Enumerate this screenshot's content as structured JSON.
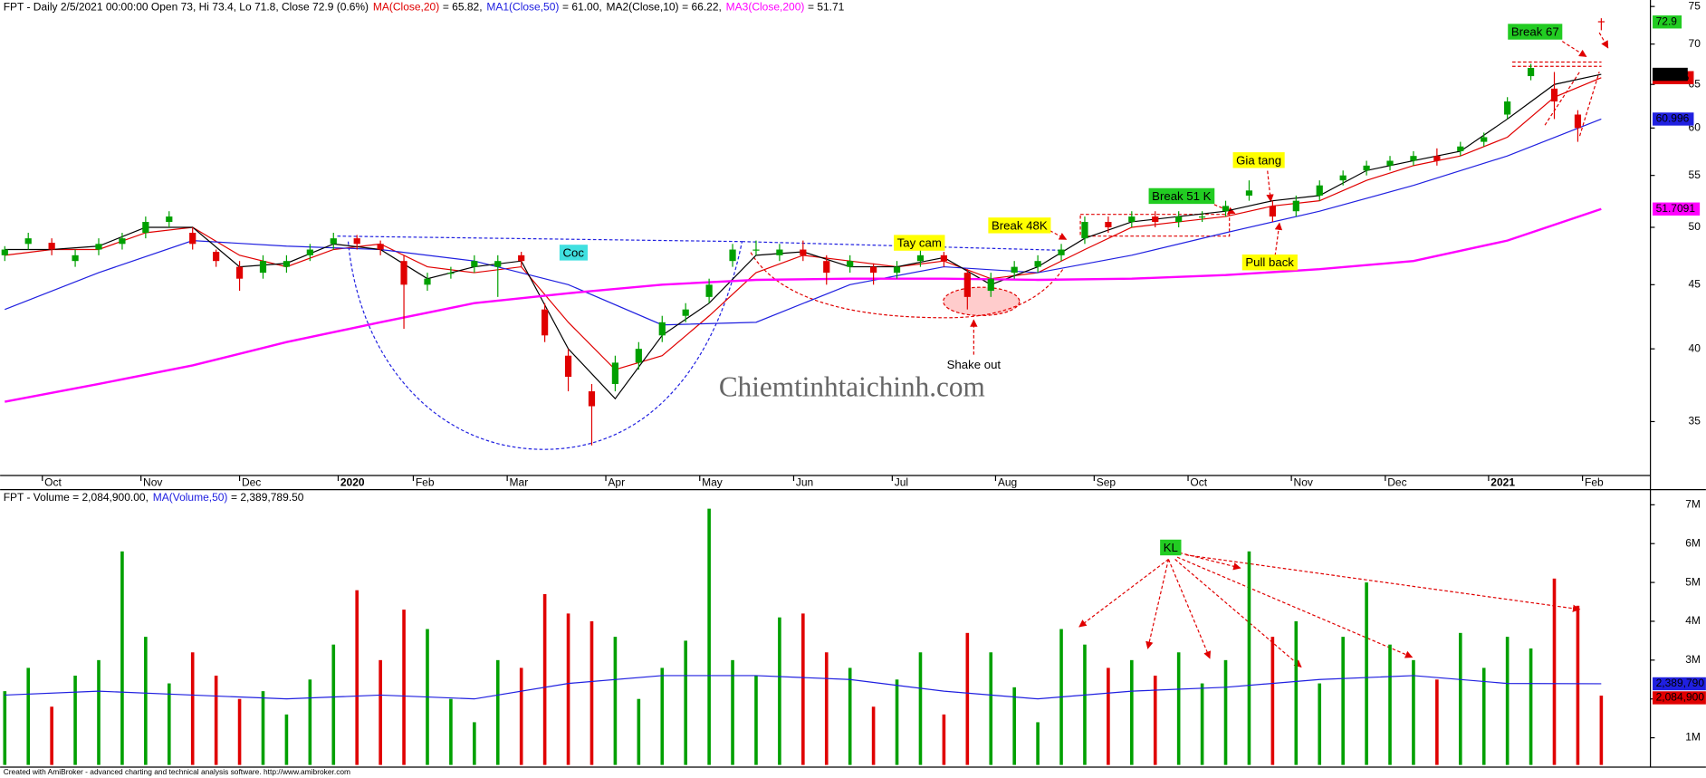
{
  "chart_data": [
    {
      "type": "candlestick",
      "title": "FPT - Daily 2/5/2021 00:00:00 Open 73, Hi 73.4, Lo 71.8, Close 72.9 (0.6%)",
      "x": [
        0,
        5,
        10,
        15,
        20,
        25,
        30,
        35,
        40,
        45,
        50,
        55,
        60,
        65,
        70,
        75,
        80,
        85,
        90,
        95,
        100,
        105,
        110,
        115,
        120,
        125,
        130,
        135,
        140,
        145,
        150,
        155,
        160,
        165,
        170,
        175,
        180,
        185,
        190,
        195,
        200,
        205,
        210,
        215,
        220,
        225,
        230,
        235,
        240,
        245,
        250,
        255,
        260,
        265,
        270,
        275,
        280,
        285,
        290,
        295,
        300,
        305,
        310,
        315,
        320,
        325,
        330,
        335,
        340
      ],
      "open": [
        47.5,
        48.5,
        48.6,
        47.0,
        48.0,
        48.5,
        49.5,
        50.5,
        49.5,
        47.8,
        46.5,
        46.0,
        46.5,
        47.5,
        48.5,
        49.0,
        48.5,
        47.0,
        45.0,
        46.0,
        46.5,
        46.5,
        47.5,
        43.0,
        39.5,
        37.0,
        37.5,
        39.0,
        41.0,
        42.5,
        44.0,
        47.0,
        48.0,
        47.5,
        48.0,
        47.0,
        46.5,
        46.5,
        46.0,
        47.0,
        47.5,
        46.0,
        44.5,
        46.0,
        46.5,
        47.5,
        49.0,
        50.5,
        50.5,
        51.0,
        50.5,
        51.0,
        51.5,
        53.0,
        52.0,
        51.5,
        53.0,
        54.5,
        55.5,
        56.0,
        56.5,
        57.0,
        57.5,
        58.5,
        61.5,
        66.0,
        64.5,
        61.5,
        73
      ],
      "high": [
        48.3,
        49.5,
        49.0,
        48.0,
        49.0,
        49.5,
        51.0,
        51.5,
        50.0,
        48.0,
        47.0,
        47.5,
        47.5,
        48.5,
        49.5,
        49.3,
        48.8,
        47.5,
        46.0,
        46.5,
        47.5,
        47.5,
        47.8,
        43.5,
        40.0,
        37.5,
        39.5,
        40.5,
        42.5,
        43.5,
        45.5,
        48.5,
        48.8,
        48.5,
        48.8,
        47.5,
        47.5,
        46.8,
        47.0,
        48.0,
        47.8,
        46.3,
        46.0,
        47.0,
        47.5,
        48.5,
        51.0,
        51.0,
        51.5,
        51.5,
        51.5,
        51.5,
        52.5,
        54.5,
        52.5,
        53.0,
        54.5,
        55.5,
        56.5,
        57.0,
        57.5,
        57.8,
        58.5,
        59.5,
        63.5,
        67.5,
        66.5,
        62.0,
        73.4
      ],
      "low": [
        47.0,
        48.0,
        47.5,
        46.5,
        47.5,
        48.0,
        49.0,
        50.0,
        48.0,
        46.5,
        44.5,
        45.5,
        46.0,
        47.0,
        48.0,
        48.0,
        47.5,
        41.5,
        44.5,
        45.5,
        46.0,
        44.0,
        46.5,
        40.5,
        37.0,
        33.5,
        37.0,
        38.5,
        40.5,
        42.0,
        43.5,
        46.5,
        47.5,
        47.0,
        47.0,
        45.0,
        46.0,
        45.0,
        45.5,
        46.5,
        46.5,
        43.0,
        44.0,
        45.5,
        46.0,
        47.0,
        48.5,
        49.5,
        50.0,
        50.0,
        50.0,
        50.5,
        51.0,
        52.5,
        50.5,
        51.0,
        52.5,
        54.0,
        55.0,
        55.5,
        56.0,
        56.0,
        57.0,
        58.0,
        61.0,
        65.5,
        61.0,
        58.5,
        71.8
      ],
      "close": [
        48.0,
        49.0,
        48.0,
        47.5,
        48.5,
        49.0,
        50.5,
        51.0,
        48.5,
        47.0,
        45.5,
        47.0,
        47.0,
        48.0,
        49.0,
        48.5,
        48.0,
        45.0,
        45.5,
        46.0,
        47.0,
        47.0,
        47.0,
        41.0,
        38.0,
        36.0,
        39.0,
        40.0,
        42.0,
        43.0,
        45.0,
        48.0,
        48.0,
        48.0,
        47.5,
        46.0,
        47.0,
        46.0,
        46.5,
        47.5,
        47.0,
        44.0,
        45.5,
        46.5,
        47.0,
        48.0,
        50.5,
        50.0,
        51.0,
        50.5,
        51.0,
        51.0,
        52.0,
        53.5,
        51.0,
        52.5,
        54.0,
        55.0,
        56.0,
        56.5,
        57.0,
        56.5,
        58.0,
        59.0,
        63.0,
        67.0,
        63.0,
        60.0,
        72.9
      ],
      "close_label": "72.9",
      "up_color": "#00a000",
      "down_color": "#e00000",
      "series": [
        {
          "name": "MA(Close,20)",
          "legend_value": "= 65.82,",
          "color": "#e00000",
          "end_label": "65.815",
          "x": [
            0,
            10,
            20,
            30,
            40,
            50,
            60,
            70,
            80,
            90,
            100,
            110,
            120,
            130,
            140,
            150,
            160,
            170,
            180,
            190,
            200,
            210,
            220,
            230,
            240,
            250,
            260,
            270,
            280,
            290,
            300,
            310,
            320,
            330,
            340
          ],
          "values": [
            47.5,
            48,
            48,
            49.5,
            50,
            47.5,
            46.5,
            48,
            48.5,
            46.5,
            46,
            46.5,
            42,
            38.5,
            39.5,
            42.5,
            46,
            47.5,
            47,
            46.5,
            47,
            45.5,
            46,
            48,
            50,
            50.5,
            51,
            52,
            52.5,
            54.5,
            56,
            57,
            59,
            63.5,
            65.815
          ]
        },
        {
          "name": "MA1(Close,50)",
          "legend_value": "= 61.00,",
          "color": "#2020e0",
          "end_label": "60.996",
          "x": [
            0,
            20,
            40,
            60,
            80,
            100,
            120,
            140,
            160,
            180,
            200,
            220,
            240,
            260,
            280,
            300,
            320,
            340
          ],
          "values": [
            43,
            46,
            48.8,
            48.3,
            48,
            47,
            45,
            41.8,
            42,
            45,
            46.5,
            46,
            47.5,
            49.5,
            51.5,
            54,
            57,
            60.996
          ]
        },
        {
          "name": "MA2(Close,10)",
          "legend_value": "= 66.22,",
          "color": "#000000",
          "end_label": "66.22",
          "x": [
            0,
            10,
            20,
            30,
            40,
            50,
            60,
            70,
            80,
            90,
            100,
            110,
            120,
            130,
            140,
            150,
            160,
            170,
            180,
            190,
            200,
            210,
            220,
            230,
            240,
            250,
            260,
            270,
            280,
            290,
            300,
            310,
            320,
            330,
            340
          ],
          "values": [
            48,
            48,
            48.3,
            50,
            50,
            46.5,
            46.8,
            48.5,
            48,
            45.5,
            46.5,
            47,
            40,
            36.5,
            41,
            43.5,
            47.5,
            47.8,
            46.5,
            46.5,
            47.3,
            45,
            46.5,
            49,
            50.5,
            51,
            51.5,
            52.5,
            53,
            55.5,
            56.5,
            57.5,
            61,
            65,
            66.22
          ]
        },
        {
          "name": "MA3(Close,200)",
          "legend_value": "= 51.71",
          "color": "#ff00ff",
          "end_label": "51.7091",
          "x": [
            0,
            20,
            40,
            60,
            80,
            100,
            120,
            140,
            160,
            180,
            200,
            220,
            240,
            260,
            280,
            300,
            320,
            340
          ],
          "values": [
            36.3,
            37.5,
            38.8,
            40.5,
            42,
            43.5,
            44.3,
            45,
            45.4,
            45.5,
            45.5,
            45.4,
            45.5,
            45.8,
            46.3,
            47,
            48.8,
            51.7091
          ]
        }
      ],
      "log_scale": true,
      "xlim": [
        -1,
        350
      ],
      "xticks": [
        {
          "value": 8,
          "label": "Oct"
        },
        {
          "value": 29,
          "label": "Nov"
        },
        {
          "value": 50,
          "label": "Dec"
        },
        {
          "value": 71,
          "label": "2020"
        },
        {
          "value": 87,
          "label": "Feb"
        },
        {
          "value": 107,
          "label": "Mar"
        },
        {
          "value": 128,
          "label": "Apr"
        },
        {
          "value": 148,
          "label": "May"
        },
        {
          "value": 168,
          "label": "Jun"
        },
        {
          "value": 189,
          "label": "Jul"
        },
        {
          "value": 211,
          "label": "Aug"
        },
        {
          "value": 232,
          "label": "Sep"
        },
        {
          "value": 252,
          "label": "Oct"
        },
        {
          "value": 274,
          "label": "Nov"
        },
        {
          "value": 294,
          "label": "Dec"
        },
        {
          "value": 316,
          "label": "2021"
        },
        {
          "value": 336,
          "label": "Feb"
        }
      ],
      "ylim": [
        31.7,
        75.9
      ],
      "yticks": [
        35,
        40,
        45,
        50,
        55,
        60,
        65,
        70,
        75
      ],
      "annotations": [
        {
          "text": "Coc",
          "color": "#40e0e0"
        },
        {
          "text": "Tay cam",
          "color": "#ffff00"
        },
        {
          "text": "Break 48K",
          "color": "#ffff00"
        },
        {
          "text": "Break 51 K",
          "color": "#22cc22"
        },
        {
          "text": "Gia tang",
          "color": "#ffff00"
        },
        {
          "text": "Pull back",
          "color": "#ffff00"
        },
        {
          "text": "Break 67",
          "color": "#22cc22"
        },
        {
          "text": "Shake out",
          "color": null
        }
      ],
      "watermark": "Chiemtinhtaichinh.com"
    },
    {
      "type": "bar",
      "title": "FPT - Volume = 2,084,900.00,",
      "x": [
        0,
        5,
        10,
        15,
        20,
        25,
        30,
        35,
        40,
        45,
        50,
        55,
        60,
        65,
        70,
        75,
        80,
        85,
        90,
        95,
        100,
        105,
        110,
        115,
        120,
        125,
        130,
        135,
        140,
        145,
        150,
        155,
        160,
        165,
        170,
        175,
        180,
        185,
        190,
        195,
        200,
        205,
        210,
        215,
        220,
        225,
        230,
        235,
        240,
        245,
        250,
        255,
        260,
        265,
        270,
        275,
        280,
        285,
        290,
        295,
        300,
        305,
        310,
        315,
        320,
        325,
        330,
        335,
        340
      ],
      "values": [
        2200000,
        2800000,
        1800000,
        2600000,
        3000000,
        5800000,
        3600000,
        2400000,
        3200000,
        2600000,
        2000000,
        2200000,
        1600000,
        2500000,
        3400000,
        4800000,
        3000000,
        4300000,
        3800000,
        2000000,
        1400000,
        3000000,
        2800000,
        4700000,
        4200000,
        4000000,
        3600000,
        2000000,
        2800000,
        3500000,
        6900000,
        3000000,
        2600000,
        4100000,
        4200000,
        3200000,
        2800000,
        1800000,
        2500000,
        3200000,
        1600000,
        3700000,
        3200000,
        2300000,
        1400000,
        3800000,
        3400000,
        2800000,
        3000000,
        2600000,
        3200000,
        2400000,
        3000000,
        5800000,
        3600000,
        4000000,
        2400000,
        3600000,
        5000000,
        3400000,
        3000000,
        2500000,
        3700000,
        2800000,
        3600000,
        3300000,
        5100000,
        4400000,
        2084900
      ],
      "end_label": "2,084,900",
      "series": [
        {
          "name": "MA(Volume,50)",
          "legend_value": "= 2,389,789.50",
          "color": "#2020e0",
          "end_label": "2,389,790",
          "x": [
            0,
            20,
            40,
            60,
            80,
            100,
            120,
            140,
            160,
            180,
            200,
            220,
            240,
            260,
            280,
            300,
            320,
            340
          ],
          "values": [
            2100000,
            2200000,
            2100000,
            2000000,
            2100000,
            2000000,
            2400000,
            2600000,
            2600000,
            2500000,
            2200000,
            2000000,
            2200000,
            2300000,
            2500000,
            2600000,
            2400000,
            2389789.5
          ]
        }
      ],
      "ylim": [
        300000,
        7250000
      ],
      "yticks": [
        {
          "value": 1000000,
          "label": "1M"
        },
        {
          "value": 2000000,
          "label": "2M"
        },
        {
          "value": 3000000,
          "label": "3M"
        },
        {
          "value": 4000000,
          "label": "4M"
        },
        {
          "value": 5000000,
          "label": "5M"
        },
        {
          "value": 6000000,
          "label": "6M"
        },
        {
          "value": 7000000,
          "label": "7M"
        }
      ],
      "annotations": [
        {
          "text": "KL",
          "color": "#22cc22"
        }
      ]
    }
  ],
  "footer": "Created with AmiBroker - advanced charting and technical analysis software. http://www.amibroker.com"
}
